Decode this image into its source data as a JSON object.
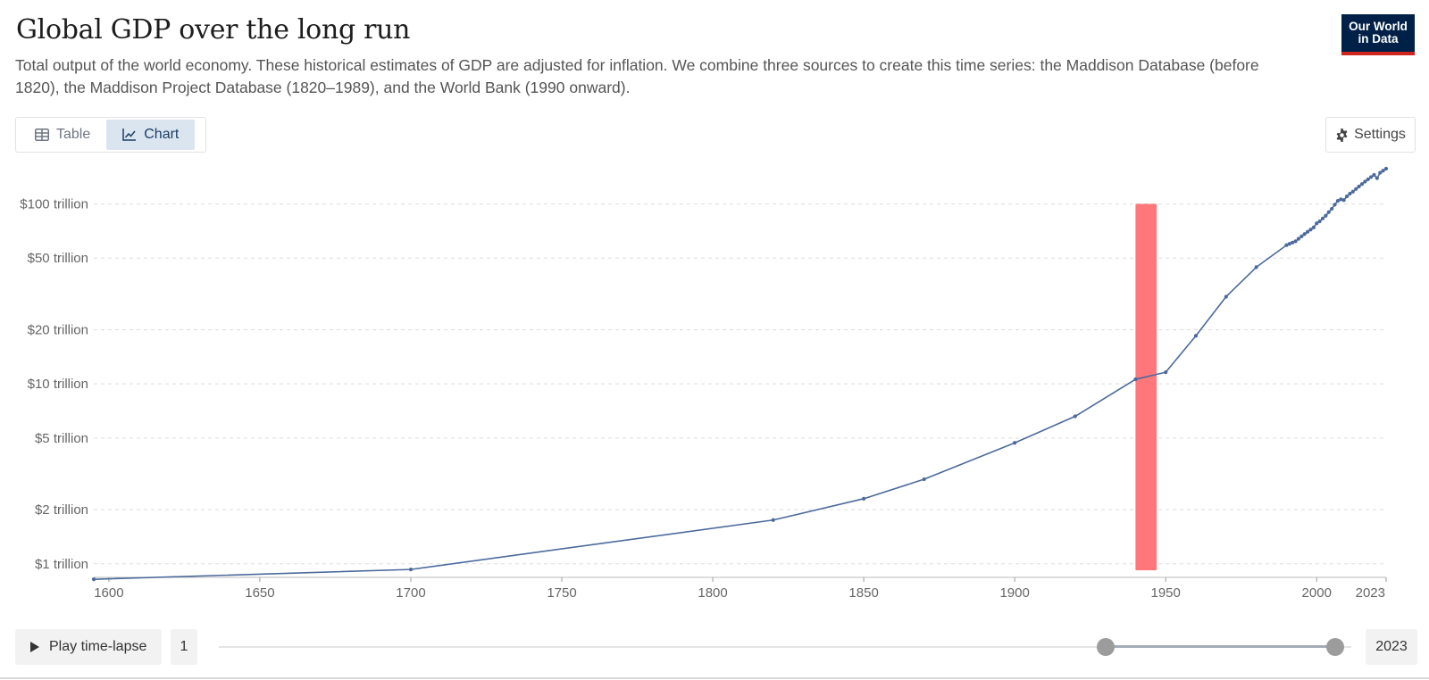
{
  "header": {
    "title": "Global GDP over the long run",
    "subtitle": "Total output of the world economy. These historical estimates of GDP are adjusted for inflation. We combine three sources to create this time series: the Maddison Database (before 1820), the Maddison Project Database (1820–1989), and the World Bank (1990 onward).",
    "logo_line1": "Our World",
    "logo_line2": "in Data"
  },
  "tabs": [
    {
      "label": "Table",
      "icon": "table-icon",
      "active": false
    },
    {
      "label": "Chart",
      "icon": "line-chart-icon",
      "active": true
    }
  ],
  "settings_label": "Settings",
  "controls": {
    "play_label": "Play time-lapse",
    "start_year": "1",
    "end_year": "2023",
    "selected_range": [
      1940,
      2023
    ]
  },
  "colors": {
    "series": "#4c6a9c",
    "highlight": "#ff6b6f",
    "grid": "#dddddd",
    "brand": "#002147",
    "brand_accent": "#ce261e"
  },
  "chart_data": {
    "type": "line",
    "y_scale": "log",
    "title": "Global GDP over the long run",
    "xlabel": "",
    "ylabel": "",
    "xlim": [
      1595,
      2023
    ],
    "ylim": [
      0.85,
      150
    ],
    "grid": "horizontal dashed",
    "x_ticks": [
      "1600",
      "1650",
      "1700",
      "1750",
      "1800",
      "1850",
      "1900",
      "1950",
      "2000",
      "2023"
    ],
    "x_tick_values": [
      1600,
      1650,
      1700,
      1750,
      1800,
      1850,
      1900,
      1950,
      2000,
      2023
    ],
    "y_ticks": [
      "$1 trillion",
      "$2 trillion",
      "$5 trillion",
      "$10 trillion",
      "$20 trillion",
      "$50 trillion",
      "$100 trillion"
    ],
    "y_tick_values": [
      1,
      2,
      5,
      10,
      20,
      50,
      100
    ],
    "highlight_band": {
      "x_start": 1940,
      "x_end": 1947,
      "y_start": 0.92,
      "y_end": 100
    },
    "series": [
      {
        "x": [
          1595,
          1700,
          1820,
          1850,
          1870,
          1900,
          1920,
          1940,
          1950,
          1960,
          1970,
          1980,
          1990,
          1991,
          1992,
          1993,
          1994,
          1995,
          1996,
          1997,
          1998,
          1999,
          2000,
          2001,
          2002,
          2003,
          2004,
          2005,
          2006,
          2007,
          2008,
          2009,
          2010,
          2011,
          2012,
          2013,
          2014,
          2015,
          2016,
          2017,
          2018,
          2019,
          2020,
          2021,
          2022,
          2023
        ],
        "values": [
          0.82,
          0.93,
          1.75,
          2.3,
          2.95,
          4.7,
          6.6,
          10.6,
          11.6,
          18.5,
          30.5,
          44.5,
          59,
          60,
          61,
          62,
          64,
          66,
          68,
          70,
          72,
          74,
          78,
          80,
          83,
          86,
          90,
          94,
          99,
          104,
          106,
          105,
          110,
          114,
          117,
          121,
          125,
          129,
          133,
          137,
          141,
          145,
          139,
          149,
          153,
          157
        ]
      }
    ]
  }
}
